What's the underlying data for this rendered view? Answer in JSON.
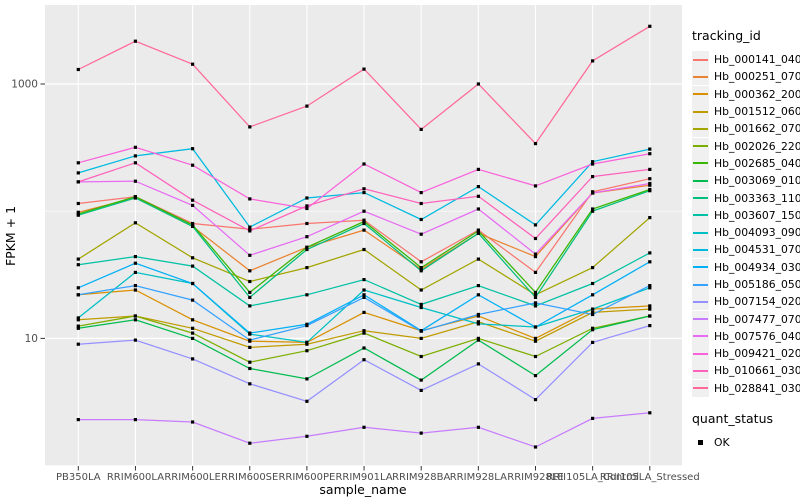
{
  "chart_data": {
    "type": "line",
    "title": "",
    "xlabel": "sample_name",
    "ylabel": "FPKM + 1",
    "y_scale": "log10",
    "grid": true,
    "legend_position": "right",
    "y_tick_values": [
      1000,
      10
    ],
    "y_tick_labels": [
      "1000",
      "10"
    ],
    "y_minor_gridlines": [
      100,
      1
    ],
    "ylim": [
      1,
      3500
    ],
    "categories": [
      "PB350LA",
      "RRIM600LA",
      "RRIM600LE",
      "RRIM600SE",
      "RRIM600PE",
      "RRIM901LA",
      "RRIM928BA",
      "RRIM928LA",
      "RRIM928LE",
      "RRII105LA_Control",
      "RRII105LA_Stressed"
    ],
    "point_shape": "filled-square",
    "point_color": "#000000",
    "series": [
      {
        "name": "Hb_000141_040",
        "color": "#F8766D",
        "values": [
          115,
          130,
          80,
          72,
          80,
          85,
          40,
          71,
          33,
          142,
          180
        ]
      },
      {
        "name": "Hb_000251_070",
        "color": "#EA8331",
        "values": [
          98,
          128,
          76,
          34,
          52,
          71,
          35,
          67,
          44,
          139,
          160
        ]
      },
      {
        "name": "Hb_000362_200",
        "color": "#D89000",
        "values": [
          22,
          24,
          14,
          9.5,
          9.3,
          16,
          11.5,
          15,
          10,
          17,
          18
        ]
      },
      {
        "name": "Hb_001512_060",
        "color": "#C09B00",
        "values": [
          14,
          15,
          12,
          8.5,
          9,
          11.5,
          10,
          13.5,
          9.5,
          16,
          17
        ]
      },
      {
        "name": "Hb_001662_070",
        "color": "#A3A500",
        "values": [
          42,
          81,
          43,
          28,
          36,
          50,
          24,
          42,
          22,
          36,
          89
        ]
      },
      {
        "name": "Hb_002026_220",
        "color": "#7CAE00",
        "values": [
          12.5,
          15,
          11,
          6.5,
          8,
          11,
          7.2,
          10,
          7.2,
          12,
          15
        ]
      },
      {
        "name": "Hb_002685_040",
        "color": "#39B600",
        "values": [
          95,
          130,
          78,
          23,
          52,
          83,
          36,
          70,
          23,
          104,
          148
        ]
      },
      {
        "name": "Hb_003069_010",
        "color": "#00BB4E",
        "values": [
          12,
          14,
          10,
          5.8,
          4.8,
          8.4,
          4.7,
          9.7,
          5.1,
          11.7,
          15
        ]
      },
      {
        "name": "Hb_003363_110",
        "color": "#00BF7D",
        "values": [
          93,
          127,
          76,
          21,
          50,
          80,
          34,
          67,
          21,
          100,
          145
        ]
      },
      {
        "name": "Hb_003607_150",
        "color": "#00C1A3",
        "values": [
          38,
          44,
          37,
          18,
          22,
          29,
          18.5,
          26,
          18,
          27,
          47
        ]
      },
      {
        "name": "Hb_004093_090",
        "color": "#00BFC4",
        "values": [
          14.5,
          33,
          27,
          10.8,
          9.3,
          24,
          17.5,
          13,
          12.3,
          17,
          25
        ]
      },
      {
        "name": "Hb_004531_070",
        "color": "#00BAE0",
        "values": [
          200,
          272,
          310,
          75,
          127,
          140,
          86,
          156,
          78,
          245,
          308
        ]
      },
      {
        "name": "Hb_004934_030",
        "color": "#00B0F6",
        "values": [
          25,
          39,
          27,
          11,
          12.9,
          22,
          11.5,
          22,
          12.3,
          22,
          40
        ]
      },
      {
        "name": "Hb_005186_050",
        "color": "#35A2FF",
        "values": [
          22,
          26,
          20,
          9.7,
          12.6,
          21,
          11.4,
          15.4,
          19,
          15.4,
          26
        ]
      },
      {
        "name": "Hb_007154_020",
        "color": "#9590FF",
        "values": [
          9,
          9.7,
          6.9,
          4.4,
          3.2,
          6.8,
          3.9,
          6.3,
          3.3,
          9.3,
          12.6
        ]
      },
      {
        "name": "Hb_007477_070",
        "color": "#C77CFF",
        "values": [
          2.3,
          2.3,
          2.2,
          1.5,
          1.7,
          2.0,
          1.8,
          2.0,
          1.4,
          2.35,
          2.6
        ]
      },
      {
        "name": "Hb_007576_040",
        "color": "#E76BF3",
        "values": [
          170,
          172,
          111,
          45,
          63,
          100,
          66,
          104,
          46,
          139,
          165
        ]
      },
      {
        "name": "Hb_009421_020",
        "color": "#FA62DB",
        "values": [
          240,
          318,
          230,
          125,
          105,
          235,
          140,
          213,
          158,
          235,
          283
        ]
      },
      {
        "name": "Hb_010661_030",
        "color": "#FF62BC",
        "values": [
          170,
          240,
          122,
          70,
          110,
          150,
          115,
          131,
          61,
          187,
          213
        ]
      },
      {
        "name": "Hb_028841_030",
        "color": "#FF6A98",
        "values": [
          1300,
          2170,
          1430,
          460,
          670,
          1310,
          440,
          1000,
          340,
          1520,
          2840
        ]
      }
    ]
  },
  "legend": {
    "tracking_title": "tracking_id",
    "quant_title": "quant_status",
    "quant_items": [
      {
        "label": "OK",
        "shape": "filled-square",
        "color": "#000000"
      }
    ]
  },
  "colors": {
    "panel_bg": "#EBEBEB",
    "grid": "#FFFFFF",
    "tick_mark": "#333333",
    "tick_text": "#4d4d4d",
    "axis_title": "#000000",
    "legend_key_bg": "#F0F0F0",
    "figure_bg": "#FFFFFF"
  }
}
